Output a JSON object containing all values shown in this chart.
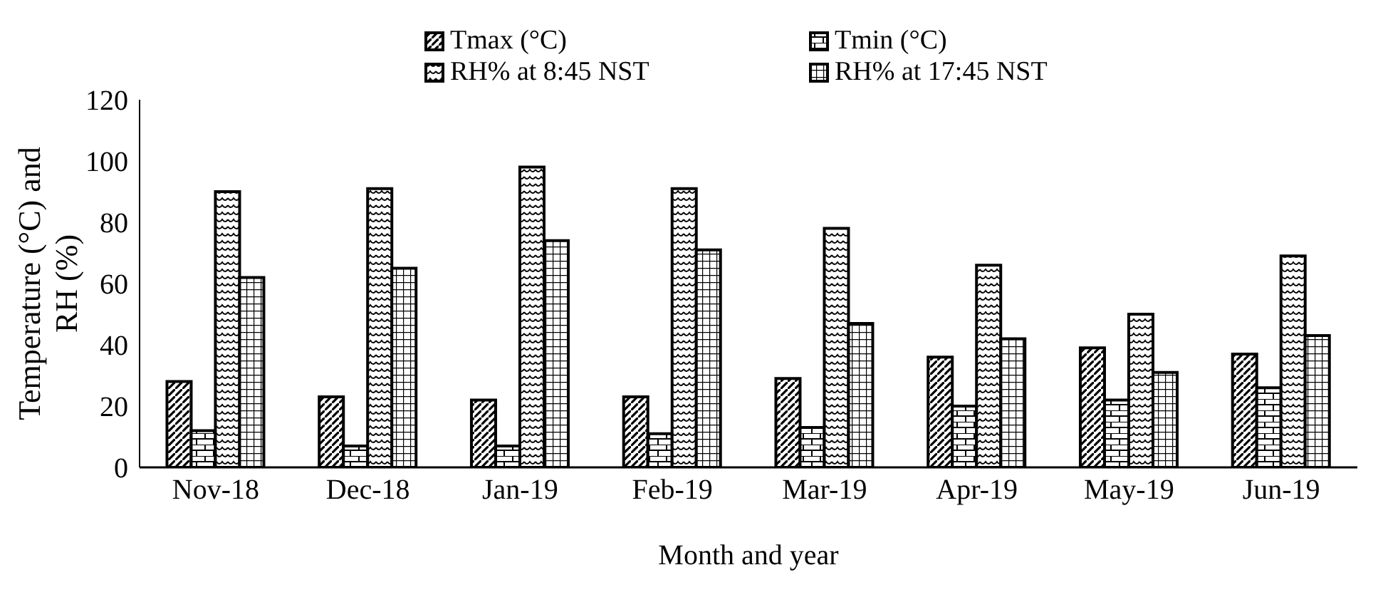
{
  "chart_data": {
    "type": "bar",
    "xlabel": "Month and year",
    "ylabel": "Temperature (°C) and RH (%)",
    "categories": [
      "Nov-18",
      "Dec-18",
      "Jan-19",
      "Feb-19",
      "Mar-19",
      "Apr-19",
      "May-19",
      "Jun-19"
    ],
    "series": [
      {
        "name": "Tmax (°C)",
        "color": "#000000",
        "values": [
          28,
          23,
          22,
          23,
          29,
          36,
          39,
          37
        ]
      },
      {
        "name": "Tmin (°C)",
        "color": "#000000",
        "values": [
          12,
          7,
          7,
          11,
          13,
          20,
          22,
          26
        ]
      },
      {
        "name": "RH% at 8:45 NST",
        "color": "#000000",
        "values": [
          90,
          91,
          98,
          91,
          78,
          66,
          50,
          69
        ]
      },
      {
        "name": "RH% at 17:45 NST",
        "color": "#000000",
        "values": [
          62,
          65,
          74,
          71,
          47,
          42,
          31,
          43
        ]
      }
    ],
    "ylim": [
      0,
      120
    ],
    "yticks": [
      0,
      20,
      40,
      60,
      80,
      100,
      120
    ],
    "grid": false,
    "legend": "top"
  }
}
